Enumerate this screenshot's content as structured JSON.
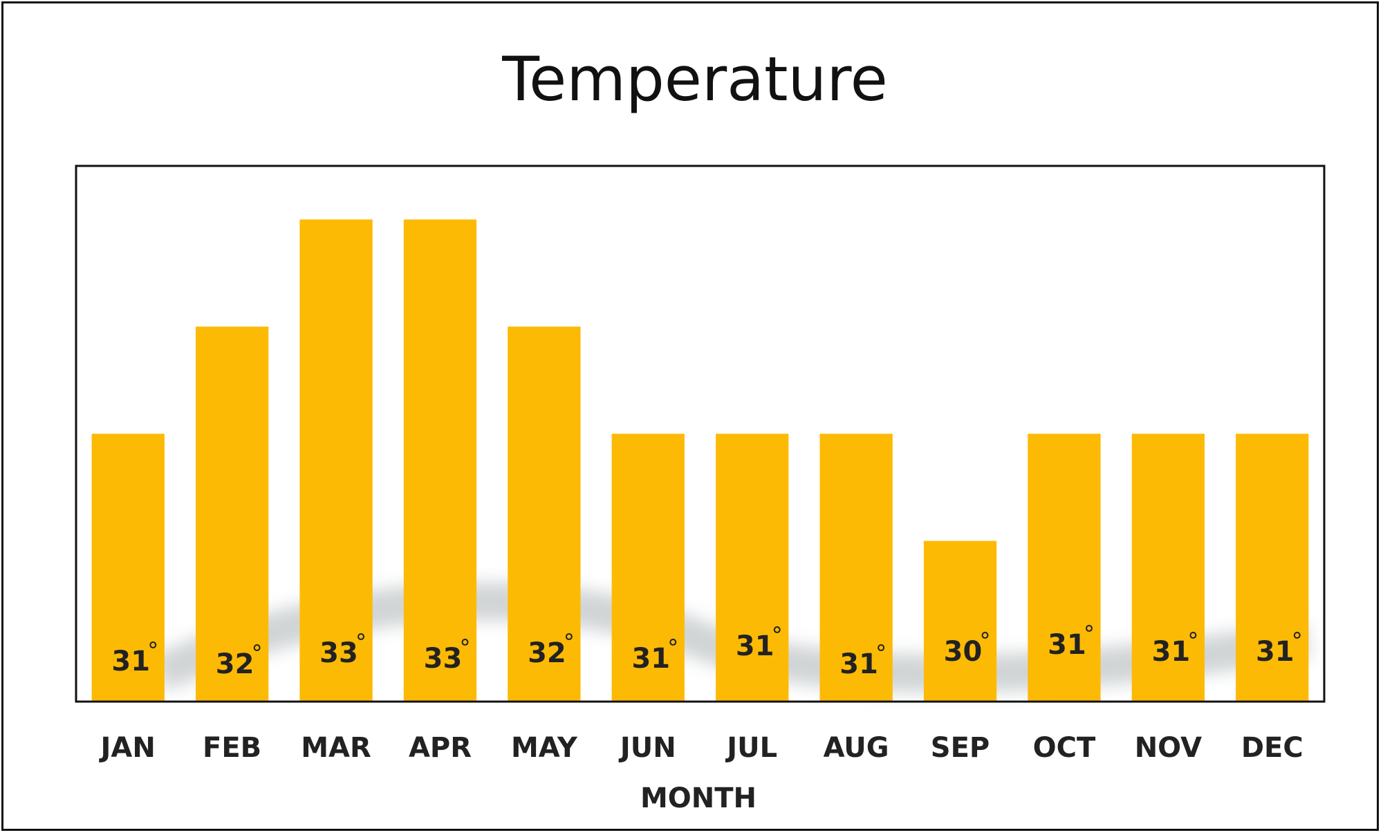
{
  "chart_data": {
    "type": "bar",
    "title": "Temperature",
    "xlabel": "MONTH",
    "ylabel": "",
    "categories": [
      "JAN",
      "FEB",
      "MAR",
      "APR",
      "MAY",
      "JUN",
      "JUL",
      "AUG",
      "SEP",
      "OCT",
      "NOV",
      "DEC"
    ],
    "values": [
      31,
      32,
      33,
      33,
      32,
      31,
      31,
      31,
      30,
      31,
      31,
      31
    ],
    "value_labels": [
      "31",
      "32",
      "33",
      "33",
      "32",
      "31",
      "31",
      "31",
      "30",
      "31",
      "31",
      "31"
    ],
    "unit_symbol": "°",
    "ylim": [
      28.5,
      33.5
    ],
    "grid": false,
    "legend": "none",
    "bar_color": "#FDBA05"
  }
}
